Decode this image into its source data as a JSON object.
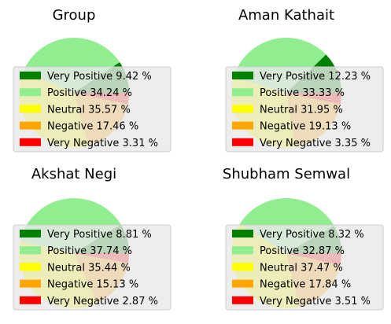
{
  "chart_data": [
    {
      "type": "pie",
      "title": "Group",
      "categories": [
        "Very Positive",
        "Positive",
        "Neutral",
        "Negative",
        "Very Negative"
      ],
      "values": [
        9.42,
        34.24,
        35.57,
        17.46,
        3.31
      ],
      "legend_labels": [
        "Very Positive 9.42 %",
        "Positive 34.24 %",
        "Neutral 35.57 %",
        "Negative 17.46 %",
        "Very Negative 3.31 %"
      ],
      "colors": [
        "#008000",
        "#90ee90",
        "#ffff00",
        "#ffa500",
        "#ff0000"
      ],
      "legend_position": "lower-center"
    },
    {
      "type": "pie",
      "title": "Aman Kathait",
      "categories": [
        "Very Positive",
        "Positive",
        "Neutral",
        "Negative",
        "Very Negative"
      ],
      "values": [
        12.23,
        33.33,
        31.95,
        19.13,
        3.35
      ],
      "legend_labels": [
        "Very Positive 12.23 %",
        "Positive 33.33 %",
        "Neutral 31.95 %",
        "Negative 19.13 %",
        "Very Negative 3.35 %"
      ],
      "colors": [
        "#008000",
        "#90ee90",
        "#ffff00",
        "#ffa500",
        "#ff0000"
      ],
      "legend_position": "lower-center"
    },
    {
      "type": "pie",
      "title": "Akshat Negi",
      "categories": [
        "Very Positive",
        "Positive",
        "Neutral",
        "Negative",
        "Very Negative"
      ],
      "values": [
        8.81,
        37.74,
        35.44,
        15.13,
        2.87
      ],
      "legend_labels": [
        "Very Positive 8.81 %",
        "Positive 37.74 %",
        "Neutral 35.44 %",
        "Negative 15.13 %",
        "Very Negative 2.87 %"
      ],
      "colors": [
        "#008000",
        "#90ee90",
        "#ffff00",
        "#ffa500",
        "#ff0000"
      ],
      "legend_position": "lower-center"
    },
    {
      "type": "pie",
      "title": "Shubham Semwal",
      "categories": [
        "Very Positive",
        "Positive",
        "Neutral",
        "Negative",
        "Very Negative"
      ],
      "values": [
        8.32,
        32.87,
        37.47,
        17.84,
        3.51
      ],
      "legend_labels": [
        "Very Positive 8.32 %",
        "Positive 32.87 %",
        "Neutral 37.47 %",
        "Negative 17.84 %",
        "Very Negative 3.51 %"
      ],
      "colors": [
        "#008000",
        "#90ee90",
        "#ffff00",
        "#ffa500",
        "#ff0000"
      ],
      "legend_position": "lower-center"
    }
  ]
}
